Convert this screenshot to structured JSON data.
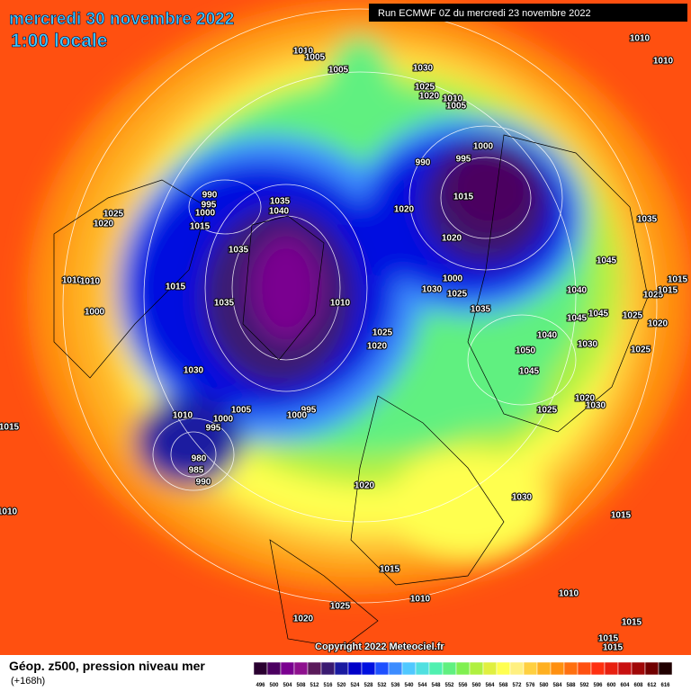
{
  "header": {
    "title": "mercredi 30 novembre 2022",
    "subtitle": "1:00 locale",
    "run": "Run ECMWF 0Z du mercredi 23 novembre 2022"
  },
  "map": {
    "copyright": "Copyright 2022 Meteociel.fr",
    "isobar_labels": [
      1010,
      1005,
      1005,
      1030,
      1025,
      1020,
      1010,
      1005,
      1010,
      1010,
      1000,
      990,
      995,
      1015,
      990,
      995,
      1000,
      1015,
      1035,
      1040,
      1025,
      1020,
      1020,
      1020,
      1035,
      1045,
      1035,
      1000,
      1030,
      1025,
      1035,
      1040,
      1025,
      1015,
      1015,
      1015,
      1035,
      1010,
      1010,
      1010,
      1000,
      1045,
      1045,
      1025,
      1020,
      1025,
      1020,
      1040,
      1030,
      1050,
      1025,
      1045,
      1030,
      1020,
      1030,
      1025,
      1005,
      995,
      1000,
      1010,
      1000,
      995,
      980,
      985,
      990,
      1015,
      1010,
      1020,
      1030,
      1015,
      1015,
      1010,
      1010,
      1025,
      1020,
      1015,
      1015,
      1015
    ]
  },
  "legend": {
    "title": "Géop. z500, pression niveau mer",
    "lead": "(+168h)",
    "scale_labels": [
      496,
      500,
      504,
      508,
      512,
      516,
      520,
      524,
      528,
      532,
      536,
      540,
      544,
      548,
      552,
      556,
      560,
      564,
      568,
      572,
      576,
      580,
      584,
      588,
      592,
      596,
      600,
      604,
      608,
      612,
      616
    ],
    "scale_colors": [
      "#2a0030",
      "#4b0060",
      "#7a0090",
      "#8e108e",
      "#5a1a5a",
      "#3a1a70",
      "#1a1aa0",
      "#0000c8",
      "#0010e0",
      "#1e50ff",
      "#3c8cff",
      "#50c8ff",
      "#50e0e0",
      "#50f0b0",
      "#60f080",
      "#80f050",
      "#b0f040",
      "#e0f040",
      "#ffff50",
      "#fff080",
      "#ffd040",
      "#ffb020",
      "#ff9010",
      "#ff7010",
      "#ff5010",
      "#ff3010",
      "#e82010",
      "#c81010",
      "#a00808",
      "#700000",
      "#200000"
    ]
  }
}
